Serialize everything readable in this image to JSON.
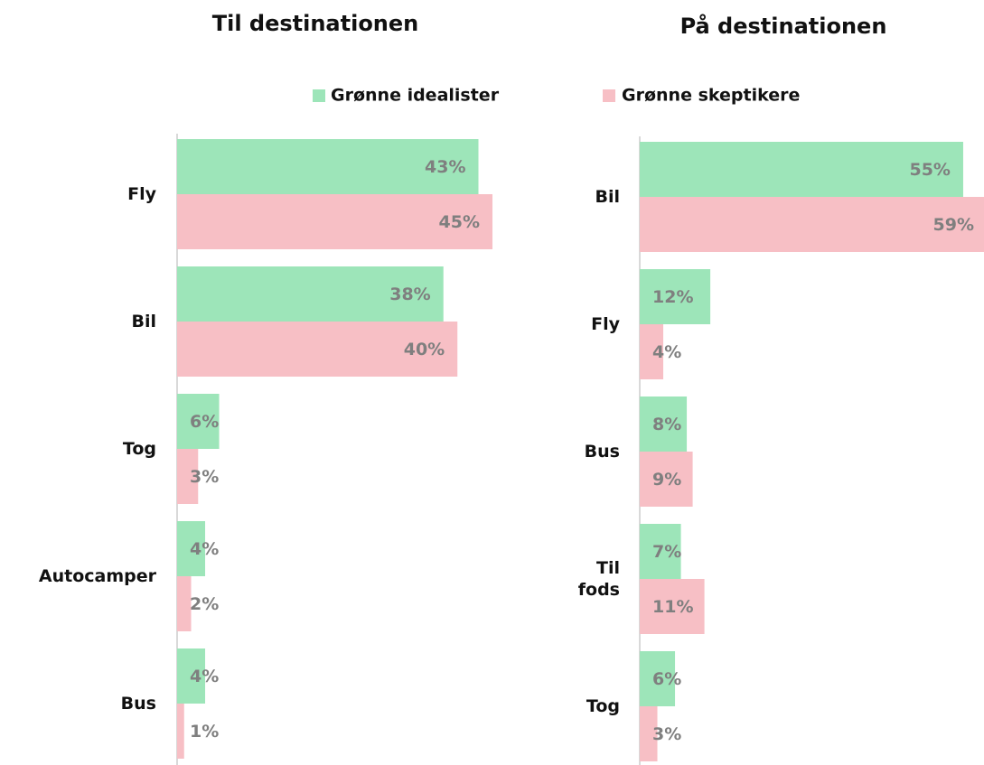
{
  "chart_data": [
    {
      "type": "hbar",
      "title": "Til destinationen",
      "categories": [
        "Fly",
        "Bil",
        "Tog",
        "Autocamper",
        "Bus"
      ],
      "series": [
        {
          "name": "Grønne idealister",
          "color": "#9de5b9",
          "values": [
            43,
            38,
            6,
            4,
            4
          ],
          "value_labels": [
            "43%",
            "38%",
            "6%",
            "4%",
            "4%"
          ]
        },
        {
          "name": "Grønne skeptikere",
          "color": "#f7bfc5",
          "values": [
            45,
            40,
            3,
            2,
            1
          ],
          "value_labels": [
            "45%",
            "40%",
            "3%",
            "2%",
            "1%"
          ]
        }
      ]
    },
    {
      "type": "hbar",
      "title": "På destinationen",
      "categories": [
        "Bil",
        "Fly",
        "Bus",
        "Til fods",
        "Tog"
      ],
      "series": [
        {
          "name": "Grønne idealister",
          "color": "#9de5b9",
          "values": [
            55,
            12,
            8,
            7,
            6
          ],
          "value_labels": [
            "55%",
            "12%",
            "8%",
            "7%",
            "6%"
          ]
        },
        {
          "name": "Grønne skeptikere",
          "color": "#f7bfc5",
          "values": [
            59,
            4,
            9,
            11,
            3
          ],
          "value_labels": [
            "59%",
            "4%",
            "9%",
            "11%",
            "3%"
          ]
        }
      ]
    }
  ]
}
